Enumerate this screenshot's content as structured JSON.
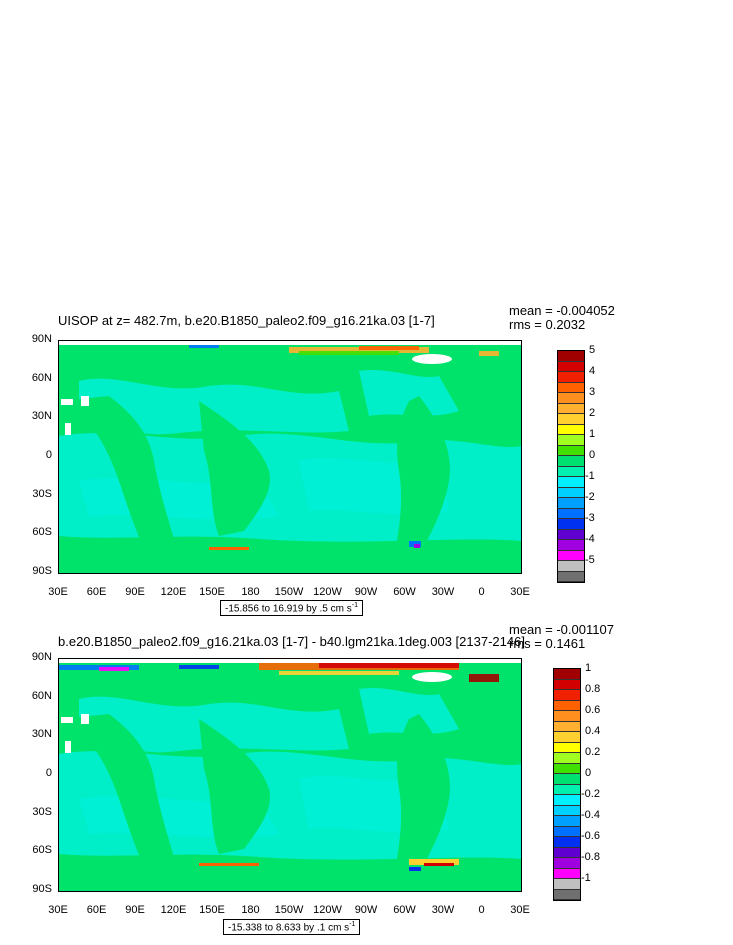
{
  "chart_data": [
    {
      "type": "heatmap",
      "title": "UISOP at z= 482.7m, b.e20.B1850_paleo2.f09_g16.21ka.03 [1-7]",
      "stats": {
        "mean": "mean = -0.004052",
        "rms": "rms = 0.2032"
      },
      "range_note": "-15.856 to 16.919 by .5 cm s",
      "range_exp": "-1",
      "y_ticks": [
        "90N",
        "60N",
        "30N",
        "0",
        "30S",
        "60S",
        "90S"
      ],
      "x_ticks": [
        "30E",
        "60E",
        "90E",
        "120E",
        "150E",
        "180",
        "150W",
        "120W",
        "90W",
        "60W",
        "30W",
        "0",
        "30E"
      ],
      "colorbar_labels": [
        "5",
        "4",
        "3",
        "2",
        "1",
        "0",
        "-1",
        "-2",
        "-3",
        "-4",
        "-5"
      ],
      "colorbar_colors": [
        "#a00000",
        "#d20000",
        "#f02000",
        "#ff6000",
        "#ff9020",
        "#ffb030",
        "#ffd030",
        "#ffff00",
        "#a0ff20",
        "#40e000",
        "#00e070",
        "#00f0b0",
        "#00f0ff",
        "#00d0ff",
        "#00a0ff",
        "#0070ff",
        "#0030f0",
        "#6000d0",
        "#a000e0",
        "#ff00ff",
        "#c0c0c0",
        "#707070"
      ]
    },
    {
      "type": "heatmap",
      "title": "b.e20.B1850_paleo2.f09_g16.21ka.03 [1-7] - b40.lgm21ka.1deg.003 [2137-2146]",
      "stats": {
        "mean": "mean = -0.001107",
        "rms": "rms = 0.1461"
      },
      "range_note": "-15.338 to 8.633 by .1 cm s",
      "range_exp": "-1",
      "y_ticks": [
        "90N",
        "60N",
        "30N",
        "0",
        "30S",
        "60S",
        "90S"
      ],
      "x_ticks": [
        "30E",
        "60E",
        "90E",
        "120E",
        "150E",
        "180",
        "150W",
        "120W",
        "90W",
        "60W",
        "30W",
        "0",
        "30E"
      ],
      "colorbar_labels": [
        "1",
        "0.8",
        "0.6",
        "0.4",
        "0.2",
        "0",
        "-0.2",
        "-0.4",
        "-0.6",
        "-0.8",
        "-1"
      ],
      "colorbar_colors": [
        "#a00000",
        "#d20000",
        "#f02000",
        "#ff6000",
        "#ff9020",
        "#ffb030",
        "#ffd030",
        "#ffff00",
        "#a0ff20",
        "#40e000",
        "#00e070",
        "#00f0b0",
        "#00f0ff",
        "#00d0ff",
        "#00a0ff",
        "#0070ff",
        "#0030f0",
        "#6000d0",
        "#a000e0",
        "#ff00ff",
        "#c0c0c0",
        "#707070"
      ]
    }
  ]
}
